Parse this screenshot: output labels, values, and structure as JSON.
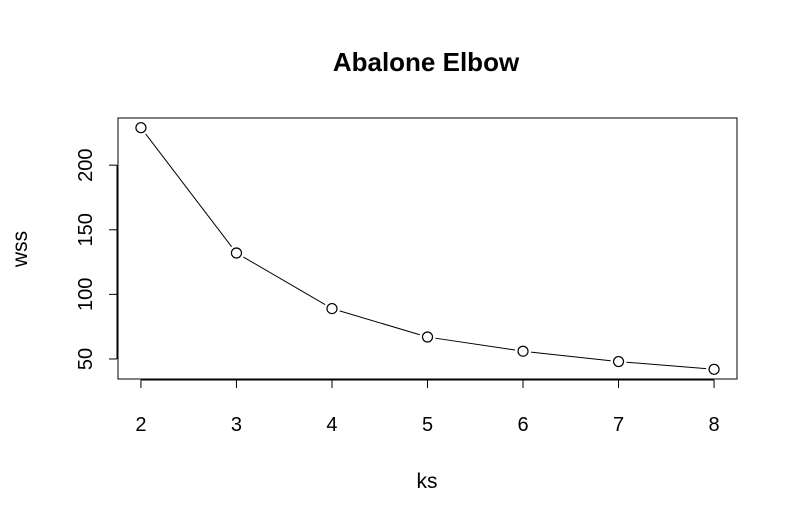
{
  "chart_data": {
    "type": "line",
    "title": "Abalone Elbow",
    "xlabel": "ks",
    "ylabel": "wss",
    "x": [
      2,
      3,
      4,
      5,
      6,
      7,
      8
    ],
    "series": [
      {
        "values": [
          229,
          132,
          89,
          67,
          56,
          48,
          42
        ]
      }
    ],
    "xticks": [
      2,
      3,
      4,
      5,
      6,
      7,
      8
    ],
    "yticks": [
      50,
      100,
      150,
      200
    ],
    "xlim": [
      1.76,
      8.24
    ],
    "ylim": [
      34.5,
      236.5
    ],
    "grid": false,
    "markers": "open-circle",
    "legend": "none"
  }
}
